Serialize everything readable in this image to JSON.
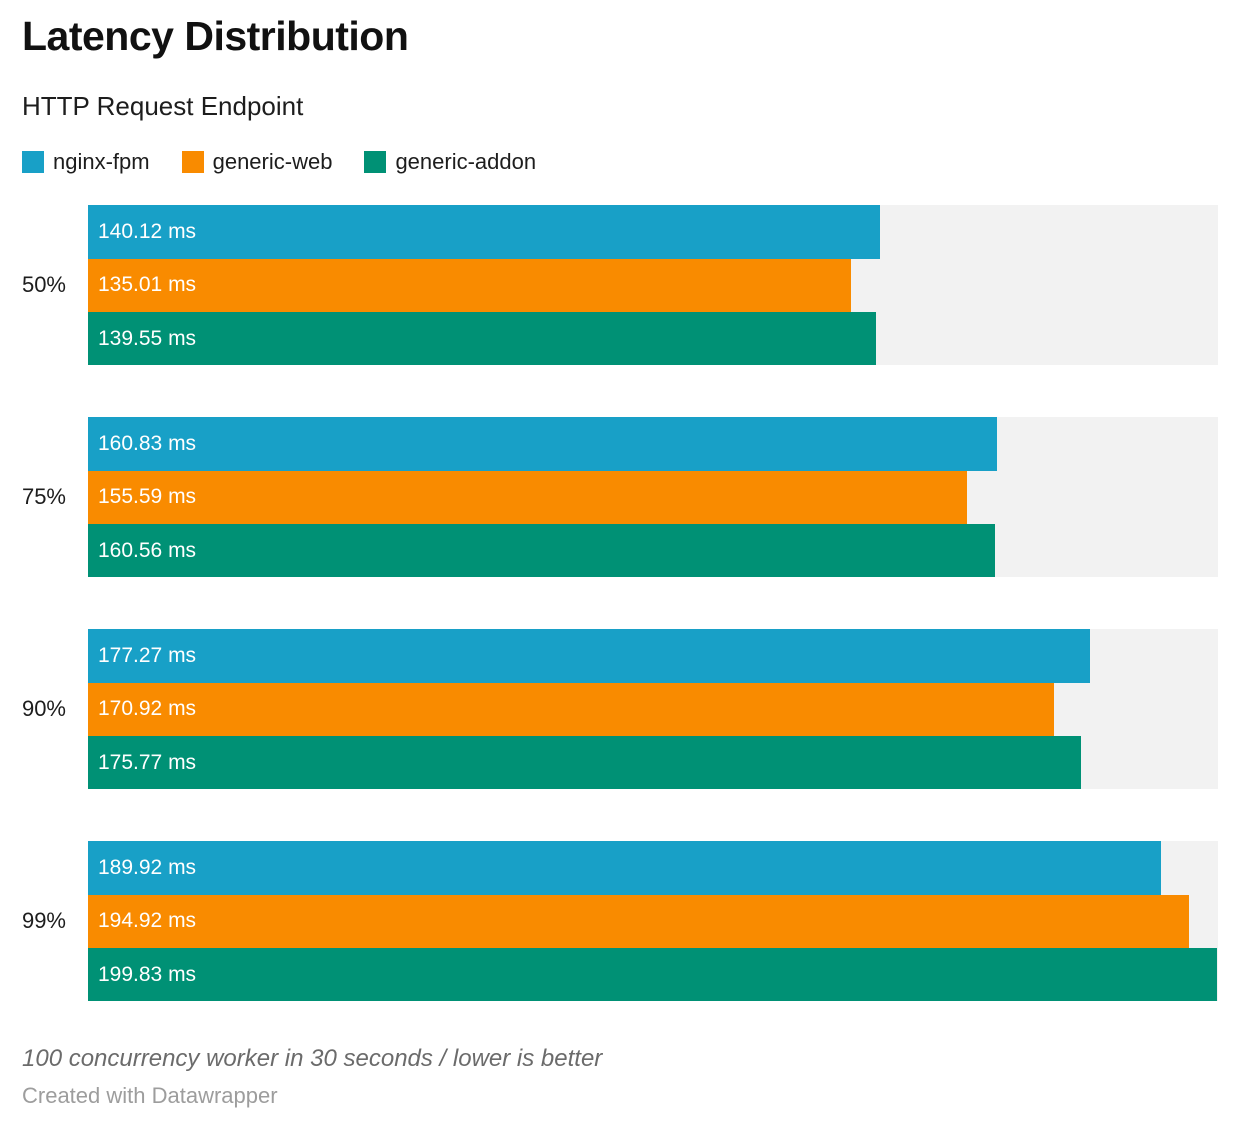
{
  "header": {
    "title": "Latency Distribution",
    "subtitle": "HTTP Request Endpoint"
  },
  "chart_data": {
    "type": "bar",
    "orientation": "horizontal",
    "grid": false,
    "legend_position": "top",
    "categories": [
      "50%",
      "75%",
      "90%",
      "99%"
    ],
    "series": [
      {
        "name": "nginx-fpm",
        "color": "#18a0c7",
        "values": [
          140.12,
          160.83,
          177.27,
          189.92
        ]
      },
      {
        "name": "generic-web",
        "color": "#f98b00",
        "values": [
          135.01,
          155.59,
          170.92,
          194.92
        ]
      },
      {
        "name": "generic-addon",
        "color": "#009175",
        "values": [
          139.55,
          160.56,
          175.77,
          199.83
        ]
      }
    ],
    "value_suffix": " ms",
    "value_decimals": 2,
    "xlim": [
      0,
      200
    ],
    "track_color": "#f2f2f2",
    "label_color": "#ffffff"
  },
  "footer": {
    "note": "100 concurrency worker in 30 seconds / lower is better",
    "attribution": "Created with Datawrapper"
  }
}
